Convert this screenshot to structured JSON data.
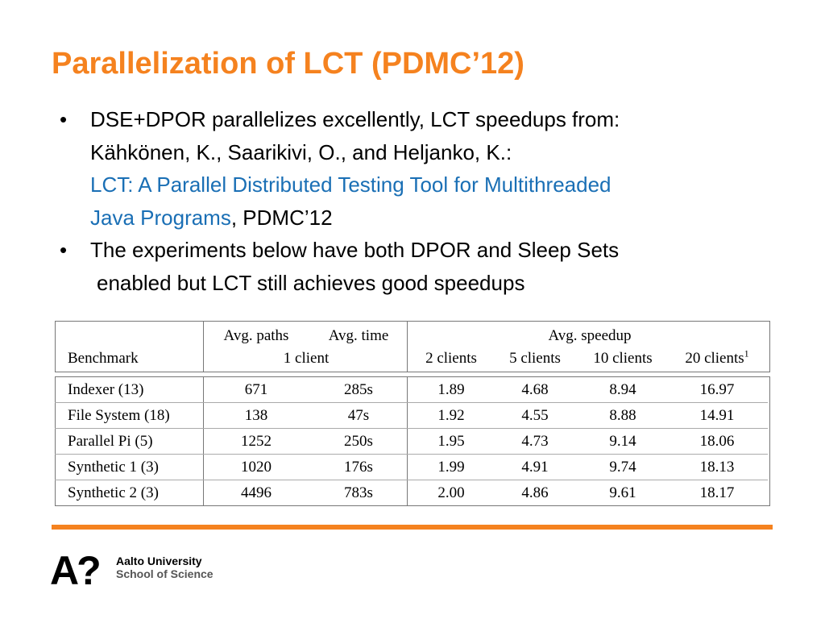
{
  "slide": {
    "title": "Parallelization of LCT (PDMC’12)",
    "bullets": [
      {
        "line1": "DSE+DPOR parallelizes excellently, LCT speedups from:",
        "line2": "Kähkönen, K., Saarikivi, O., and Heljanko, K.:",
        "link_line1": "LCT: A Parallel Distributed Testing Tool for Multithreaded",
        "link_line2": "Java Programs",
        "after_link": ", PDMC’12"
      },
      {
        "line1": "The experiments below have both DPOR and Sleep Sets",
        "line2": "enabled but LCT still achieves good speedups"
      }
    ],
    "bullet_symbol": "•"
  },
  "table": {
    "header": {
      "benchmark": "Benchmark",
      "avg_paths": "Avg. paths",
      "avg_time": "Avg. time",
      "one_client": "1 client",
      "avg_speedup": "Avg. speedup",
      "clients_2": "2 clients",
      "clients_5": "5 clients",
      "clients_10": "10 clients",
      "clients_20": "20 clients",
      "footnote_mark": "1"
    },
    "rows": [
      {
        "benchmark": "Indexer (13)",
        "paths": "671",
        "time": "285s",
        "s2": "1.89",
        "s5": "4.68",
        "s10": "8.94",
        "s20": "16.97"
      },
      {
        "benchmark": "File System (18)",
        "paths": "138",
        "time": "47s",
        "s2": "1.92",
        "s5": "4.55",
        "s10": "8.88",
        "s20": "14.91"
      },
      {
        "benchmark": "Parallel Pi (5)",
        "paths": "1252",
        "time": "250s",
        "s2": "1.95",
        "s5": "4.73",
        "s10": "9.14",
        "s20": "18.06"
      },
      {
        "benchmark": "Synthetic 1 (3)",
        "paths": "1020",
        "time": "176s",
        "s2": "1.99",
        "s5": "4.91",
        "s10": "9.74",
        "s20": "18.13"
      },
      {
        "benchmark": "Synthetic 2 (3)",
        "paths": "4496",
        "time": "783s",
        "s2": "2.00",
        "s5": "4.86",
        "s10": "9.61",
        "s20": "18.17"
      }
    ]
  },
  "footer": {
    "logo_mark": "A?",
    "university": "Aalto University",
    "school": "School of Science"
  },
  "colors": {
    "accent_orange": "#f5821f",
    "link_blue": "#1a6fb5"
  }
}
